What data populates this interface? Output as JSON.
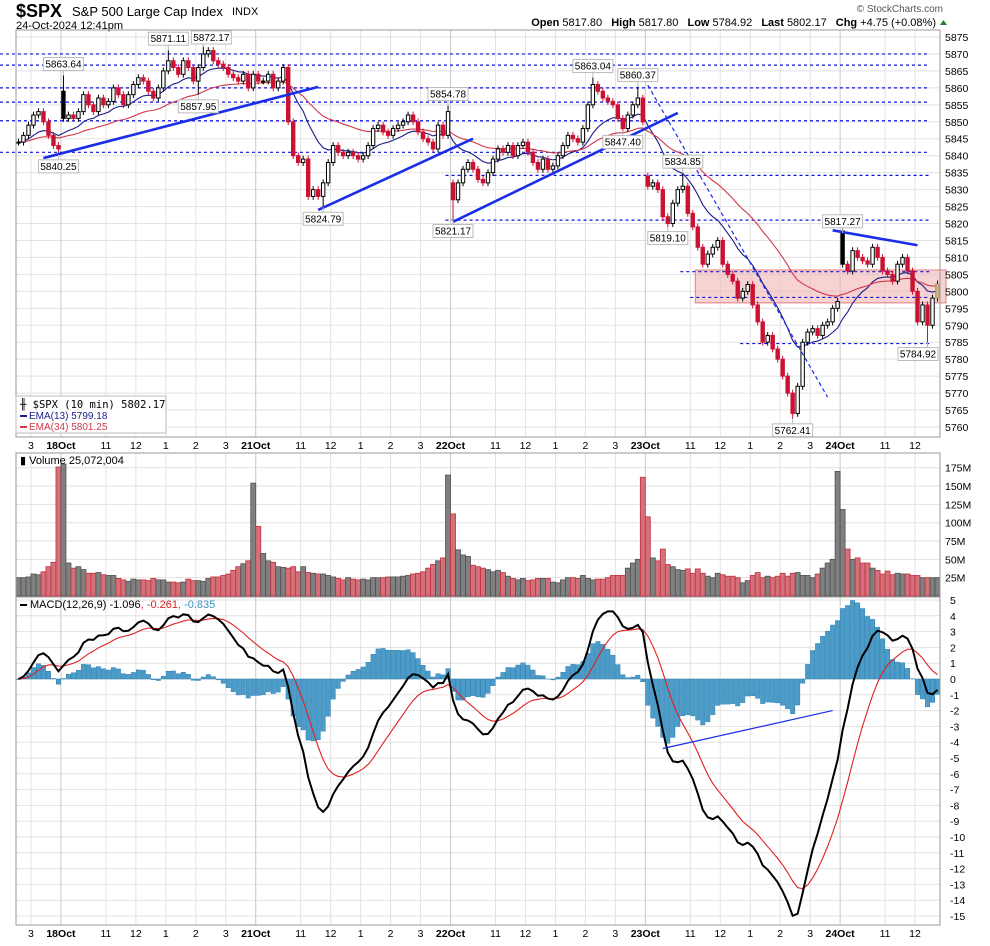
{
  "header": {
    "symbol": "$SPX",
    "name": "S&P 500 Large Cap Index",
    "exchange": "INDX",
    "datetime": "24-Oct-2024 12:41pm",
    "copyright": "© StockCharts.com",
    "open_label": "Open",
    "open": "5817.80",
    "high_label": "High",
    "high": "5817.80",
    "low_label": "Low",
    "low": "5784.92",
    "last_label": "Last",
    "last": "5802.17",
    "chg_label": "Chg",
    "chg": "+4.75 (+0.08%)",
    "chg_direction_icon": "triangle-up-icon"
  },
  "legend": {
    "price": "$SPX (10 min) 5802.17",
    "ema13": "EMA(13) 5799.18",
    "ema34": "EMA(34) 5801.25",
    "volume": "Volume 25,072,004",
    "macd_name": "MACD(12,26,9) -1.096",
    "macd_signal": ", -0.261",
    "macd_hist": ", -0.835"
  },
  "colors": {
    "up": "#000000",
    "down": "#cc1133",
    "ema13": "#1c1c8a",
    "ema34": "#d2384a",
    "vol_up": "#808080",
    "vol_down": "#d4707a",
    "macd": "#000000",
    "signal": "#e02020",
    "histogram": "#4b9cc9",
    "annotation": "#1010e0",
    "zone": "#f2b4b4",
    "last_candle": "#cbb88a"
  },
  "chart_data": [
    {
      "type": "candlestick",
      "interval": "10 min",
      "ylim": [
        5760,
        5875
      ],
      "yticks": [
        5760,
        5765,
        5770,
        5775,
        5780,
        5785,
        5790,
        5795,
        5800,
        5805,
        5810,
        5815,
        5820,
        5825,
        5830,
        5835,
        5840,
        5845,
        5850,
        5855,
        5860,
        5865,
        5870,
        5875
      ],
      "xticks": [
        {
          "bar": 3,
          "label": "3"
        },
        {
          "bar": 9,
          "label": "18Oct",
          "major": true
        },
        {
          "bar": 18,
          "label": "11"
        },
        {
          "bar": 24,
          "label": "12"
        },
        {
          "bar": 30,
          "label": "1"
        },
        {
          "bar": 36,
          "label": "2"
        },
        {
          "bar": 42,
          "label": "3"
        },
        {
          "bar": 48,
          "label": "21Oct",
          "major": true
        },
        {
          "bar": 57,
          "label": "11"
        },
        {
          "bar": 63,
          "label": "12"
        },
        {
          "bar": 69,
          "label": "1"
        },
        {
          "bar": 75,
          "label": "2"
        },
        {
          "bar": 81,
          "label": "3"
        },
        {
          "bar": 87,
          "label": "22Oct",
          "major": true
        },
        {
          "bar": 96,
          "label": "11"
        },
        {
          "bar": 102,
          "label": "12"
        },
        {
          "bar": 108,
          "label": "1"
        },
        {
          "bar": 114,
          "label": "2"
        },
        {
          "bar": 120,
          "label": "3"
        },
        {
          "bar": 126,
          "label": "23Oct",
          "major": true
        },
        {
          "bar": 135,
          "label": "11"
        },
        {
          "bar": 141,
          "label": "12"
        },
        {
          "bar": 147,
          "label": "1"
        },
        {
          "bar": 153,
          "label": "2"
        },
        {
          "bar": 159,
          "label": "3"
        },
        {
          "bar": 165,
          "label": "24Oct",
          "major": true
        },
        {
          "bar": 174,
          "label": "11"
        },
        {
          "bar": 180,
          "label": "12"
        }
      ],
      "close": [
        5844,
        5846,
        5849,
        5852,
        5853,
        5850,
        5846,
        5843,
        5842,
        5851,
        5852,
        5851,
        5853,
        5858,
        5855,
        5853,
        5857,
        5855,
        5856,
        5860,
        5858,
        5855,
        5858,
        5861,
        5863,
        5862,
        5859,
        5857,
        5860,
        5865,
        5868,
        5866,
        5864,
        5868,
        5866,
        5862,
        5866,
        5870,
        5871,
        5868,
        5867,
        5866,
        5864,
        5863,
        5862,
        5864,
        5860,
        5864,
        5862,
        5862,
        5864,
        5860,
        5862,
        5866,
        5850,
        5840,
        5838,
        5839,
        5828,
        5830,
        5828,
        5832,
        5838,
        5843,
        5841,
        5840,
        5841,
        5840,
        5839,
        5840,
        5843,
        5848,
        5849,
        5847,
        5846,
        5848,
        5849,
        5850,
        5852,
        5850,
        5847,
        5845,
        5844,
        5842,
        5849,
        5846,
        5853,
        5827,
        5832,
        5836,
        5838,
        5836,
        5833,
        5832,
        5835,
        5839,
        5842,
        5841,
        5843,
        5840,
        5843,
        5844,
        5841,
        5838,
        5836,
        5839,
        5836,
        5837,
        5840,
        5843,
        5846,
        5845,
        5844,
        5848,
        5855,
        5861,
        5859,
        5857,
        5856,
        5855,
        5851,
        5848,
        5852,
        5855,
        5857,
        5850,
        5831,
        5832,
        5830,
        5822,
        5820,
        5826,
        5830,
        5831,
        5823,
        5819,
        5813,
        5808,
        5811,
        5813,
        5815,
        5808,
        5805,
        5803,
        5798,
        5800,
        5802,
        5796,
        5791,
        5785,
        5787,
        5783,
        5780,
        5775,
        5770,
        5764,
        5772,
        5785,
        5788,
        5789,
        5787,
        5790,
        5791,
        5795,
        5797,
        5808,
        5806,
        5812,
        5810,
        5809,
        5808,
        5813,
        5810,
        5806,
        5805,
        5803,
        5808,
        5810,
        5806,
        5800,
        5791,
        5796,
        5790,
        5798,
        5802.17
      ],
      "session_opens": [
        {
          "bar": 9,
          "open": 5859
        },
        {
          "bar": 87,
          "open": 5832
        },
        {
          "bar": 126,
          "open": 5834
        },
        {
          "bar": 165,
          "open": 5817.8
        },
        {
          "bar": 184,
          "open": 5798
        }
      ],
      "callouts": [
        {
          "bar": 9,
          "price": 5863.64,
          "label": "5863.64",
          "kind": "high"
        },
        {
          "bar": 30,
          "price": 5871.11,
          "label": "5871.11",
          "kind": "high"
        },
        {
          "bar": 37,
          "price": 5872.17,
          "label": "5872.17",
          "kind": "high"
        },
        {
          "bar": 36,
          "price": 5857.95,
          "label": "5857.95",
          "kind": "low"
        },
        {
          "bar": 8,
          "price": 5840.25,
          "label": "5840.25",
          "kind": "low"
        },
        {
          "bar": 61,
          "price": 5824.79,
          "label": "5824.79",
          "kind": "low"
        },
        {
          "bar": 86,
          "price": 5854.78,
          "label": "5854.78",
          "kind": "high"
        },
        {
          "bar": 87,
          "price": 5821.17,
          "label": "5821.17",
          "kind": "low"
        },
        {
          "bar": 115,
          "price": 5863.04,
          "label": "5863.04",
          "kind": "high"
        },
        {
          "bar": 124,
          "price": 5860.37,
          "label": "5860.37",
          "kind": "high"
        },
        {
          "bar": 121,
          "price": 5847.4,
          "label": "5847.40",
          "kind": "low"
        },
        {
          "bar": 133,
          "price": 5834.85,
          "label": "5834.85",
          "kind": "high"
        },
        {
          "bar": 130,
          "price": 5819.1,
          "label": "5819.10",
          "kind": "low"
        },
        {
          "bar": 155,
          "price": 5762.41,
          "label": "5762.41",
          "kind": "low"
        },
        {
          "bar": 165,
          "price": 5817.27,
          "label": "5817.27",
          "kind": "high"
        },
        {
          "bar": 182,
          "price": 5784.92,
          "label": "5784.92",
          "kind": "low"
        }
      ],
      "overlays": [
        {
          "name": "EMA(13)",
          "period": 13
        },
        {
          "name": "EMA(34)",
          "period": 34
        }
      ],
      "support_resistance_levels": [
        {
          "price": 5870,
          "from_bar": 0
        },
        {
          "price": 5866.7,
          "from_bar": 0
        },
        {
          "price": 5860,
          "from_bar": 0
        },
        {
          "price": 5855.8,
          "from_bar": 0
        },
        {
          "price": 5850.3,
          "from_bar": 0
        },
        {
          "price": 5841,
          "from_bar": 0
        },
        {
          "price": 5834.2,
          "from_bar": 86
        },
        {
          "price": 5821,
          "from_bar": 86
        },
        {
          "price": 5805.8,
          "from_bar": 133
        },
        {
          "price": 5798.2,
          "from_bar": 135
        },
        {
          "price": 5784.6,
          "from_bar": 145
        }
      ],
      "trendlines": [
        {
          "from": {
            "bar": 5,
            "price": 5839.3
          },
          "to": {
            "bar": 60,
            "price": 5860.3
          },
          "style": "solid"
        },
        {
          "from": {
            "bar": 60,
            "price": 5824
          },
          "to": {
            "bar": 91,
            "price": 5845
          },
          "style": "solid"
        },
        {
          "from": {
            "bar": 87,
            "price": 5820.5
          },
          "to": {
            "bar": 132,
            "price": 5852.6
          },
          "style": "solid"
        },
        {
          "from": {
            "bar": 126,
            "price": 5860.8
          },
          "to": {
            "bar": 162,
            "price": 5768.8
          },
          "style": "dashed"
        },
        {
          "from": {
            "bar": 163,
            "price": 5818
          },
          "to": {
            "bar": 180,
            "price": 5813.6
          },
          "style": "solid"
        }
      ],
      "zone": {
        "from_bar": 136,
        "to_bar": 184,
        "low": 5796.6,
        "high": 5806.3
      }
    },
    {
      "type": "bar",
      "name": "Volume",
      "unit": "M",
      "ylim": [
        0,
        190
      ],
      "yticks": [
        {
          "v": 25,
          "label": "25M"
        },
        {
          "v": 50,
          "label": "50M"
        },
        {
          "v": 75,
          "label": "75M"
        },
        {
          "v": 100,
          "label": "100M"
        },
        {
          "v": 125,
          "label": "125M"
        },
        {
          "v": 150,
          "label": "150M"
        },
        {
          "v": 175,
          "label": "175M"
        }
      ],
      "values": [
        25,
        25,
        26,
        30,
        29,
        33,
        40,
        46,
        176,
        180,
        45,
        38,
        40,
        36,
        31,
        31,
        32,
        29,
        28,
        28,
        24,
        22,
        20,
        23,
        22,
        22,
        21,
        24,
        22,
        22,
        19,
        19,
        18,
        19,
        23,
        21,
        21,
        20,
        24,
        26,
        26,
        28,
        30,
        35,
        40,
        44,
        48,
        154,
        95,
        58,
        48,
        46,
        40,
        39,
        38,
        40,
        33,
        40,
        32,
        31,
        30,
        30,
        28,
        26,
        24,
        22,
        25,
        23,
        22,
        23,
        22,
        25,
        25,
        25,
        26,
        26,
        26,
        27,
        28,
        30,
        31,
        33,
        38,
        43,
        48,
        52,
        165,
        112,
        63,
        56,
        54,
        42,
        40,
        38,
        36,
        33,
        35,
        32,
        27,
        24,
        22,
        24,
        21,
        22,
        24,
        24,
        24,
        19,
        18,
        22,
        25,
        25,
        24,
        28,
        24,
        22,
        23,
        23,
        25,
        28,
        28,
        28,
        38,
        45,
        50,
        162,
        108,
        52,
        48,
        64,
        43,
        40,
        36,
        35,
        37,
        31,
        37,
        31,
        27,
        25,
        31,
        29,
        27,
        27,
        25,
        18,
        21,
        28,
        32,
        25,
        27,
        25,
        27,
        31,
        27,
        31,
        32,
        28,
        28,
        25,
        30,
        38,
        45,
        50,
        170,
        118,
        64,
        50,
        52,
        45,
        45,
        38,
        35,
        30,
        34,
        29,
        31,
        30,
        30,
        28,
        28,
        25,
        25,
        25,
        25.07
      ]
    },
    {
      "type": "line+histogram",
      "name": "MACD(12,26,9)",
      "ylim": [
        -15.5,
        5.5
      ],
      "yticks": [
        5,
        4,
        3,
        2,
        1,
        0,
        -1,
        -2,
        -3,
        -4,
        -5,
        -6,
        -7,
        -8,
        -9,
        -10,
        -11,
        -12,
        -13,
        -14,
        -15
      ],
      "params": {
        "fast": 12,
        "slow": 26,
        "signal": 9
      },
      "last": {
        "macd": -1.096,
        "signal": -0.261,
        "histogram": -0.835
      },
      "trendline": {
        "from": {
          "bar": 129,
          "value": -4.4
        },
        "to": {
          "bar": 163,
          "value": -2.0
        }
      }
    }
  ]
}
